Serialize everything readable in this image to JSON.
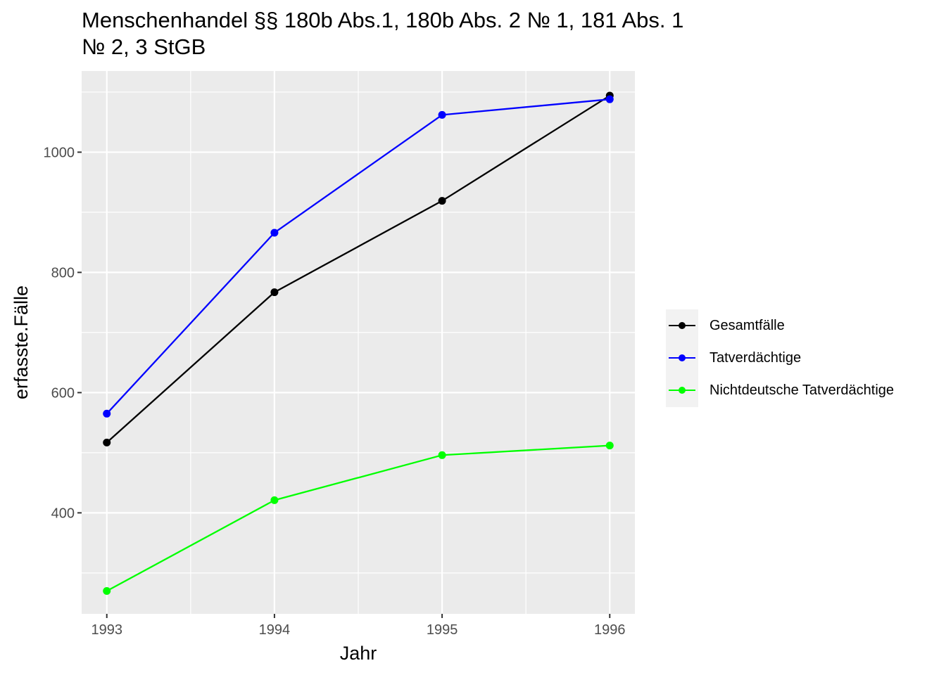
{
  "chart_data": {
    "type": "line",
    "title_lines": [
      "Menschenhandel §§ 180b Abs.1, 180b Abs. 2 № 1, 181 Abs. 1",
      "№ 2, 3 StGB"
    ],
    "xlabel": "Jahr",
    "ylabel": "erfasste.Fälle",
    "x": [
      1993,
      1994,
      1995,
      1996
    ],
    "x_tick_labels": [
      "1993",
      "1994",
      "1995",
      "1996"
    ],
    "y_ticks": [
      400,
      600,
      800,
      1000
    ],
    "y_tick_labels": [
      "400",
      "600",
      "800",
      "1000"
    ],
    "xlim": [
      1992.85,
      1996.15
    ],
    "ylim": [
      232,
      1135
    ],
    "grid": true,
    "legend_position": "right",
    "series": [
      {
        "name": "Gesamtfälle",
        "color": "#000000",
        "values": [
          517,
          767,
          919,
          1094
        ]
      },
      {
        "name": "Tatverdächtige",
        "color": "#0000ff",
        "values": [
          565,
          866,
          1062,
          1088
        ]
      },
      {
        "name": "Nichtdeutsche Tatverdächtige",
        "color": "#00ff00",
        "values": [
          270,
          421,
          496,
          512
        ]
      }
    ]
  }
}
